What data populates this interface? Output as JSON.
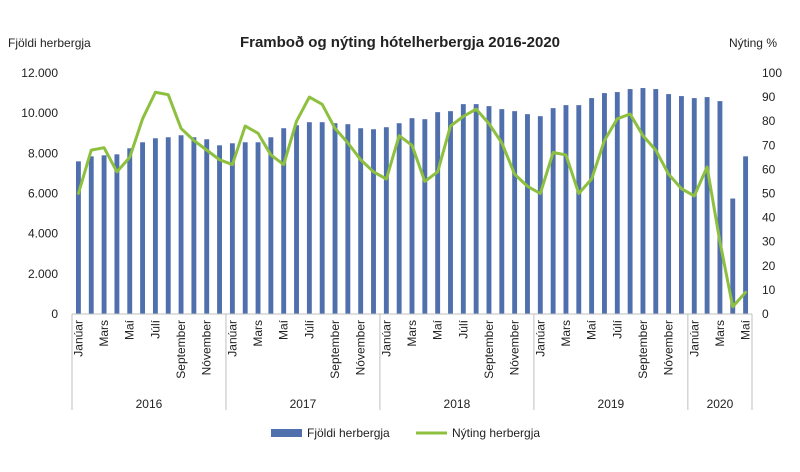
{
  "chart_data": {
    "type": "bar+line",
    "title": "Framboð og nýting hótelherbergja 2016-2020",
    "left_axis_title": "Fjöldi herbergja",
    "right_axis_title": "Nýting %",
    "left_ylim": [
      0,
      12000
    ],
    "left_ticks": [
      {
        "value": 0,
        "label": "0"
      },
      {
        "value": 2000,
        "label": "2.000"
      },
      {
        "value": 4000,
        "label": "4.000"
      },
      {
        "value": 6000,
        "label": "6.000"
      },
      {
        "value": 8000,
        "label": "8.000"
      },
      {
        "value": 10000,
        "label": "10.000"
      },
      {
        "value": 12000,
        "label": "12.000"
      }
    ],
    "right_ylim": [
      0,
      100
    ],
    "right_ticks": [
      0,
      10,
      20,
      30,
      40,
      50,
      60,
      70,
      80,
      90,
      100
    ],
    "grid": false,
    "month_labels": [
      "Janúar",
      "",
      "Mars",
      "",
      "Maí",
      "",
      "Júlí",
      "",
      "September",
      "",
      "Nóvember",
      ""
    ],
    "years": [
      {
        "label": "2016",
        "months": 12
      },
      {
        "label": "2017",
        "months": 12
      },
      {
        "label": "2018",
        "months": 12
      },
      {
        "label": "2019",
        "months": 12
      },
      {
        "label": "2020",
        "months": 5
      }
    ],
    "series": [
      {
        "name": "Fjöldi herbergja",
        "type": "bar",
        "axis": "left",
        "color": "#4f6fad",
        "values": [
          7600,
          7850,
          7900,
          7950,
          8250,
          8550,
          8750,
          8800,
          8900,
          8800,
          8700,
          8400,
          8500,
          8550,
          8550,
          8800,
          9250,
          9400,
          9550,
          9550,
          9500,
          9450,
          9250,
          9200,
          9300,
          9500,
          9750,
          9700,
          10050,
          10100,
          10450,
          10450,
          10350,
          10200,
          10100,
          9950,
          9850,
          10250,
          10400,
          10400,
          10750,
          11000,
          11050,
          11200,
          11250,
          11200,
          10950,
          10850,
          10750,
          10800,
          10600,
          5750,
          7850
        ]
      },
      {
        "name": "Nýting herbergja",
        "type": "line",
        "axis": "right",
        "color": "#8dc03f",
        "values": [
          50,
          68,
          69,
          59,
          65,
          81,
          92,
          91,
          77,
          72,
          68,
          64,
          62,
          78,
          75,
          66,
          62,
          80,
          90,
          87,
          77,
          71,
          64,
          59,
          56,
          74,
          70,
          55,
          59,
          78,
          82,
          85,
          79,
          71,
          58,
          53,
          50,
          67,
          66,
          50,
          56,
          72,
          81,
          83,
          74,
          68,
          58,
          52,
          49,
          61,
          30,
          3,
          9
        ]
      }
    ],
    "legend_position": "bottom"
  }
}
